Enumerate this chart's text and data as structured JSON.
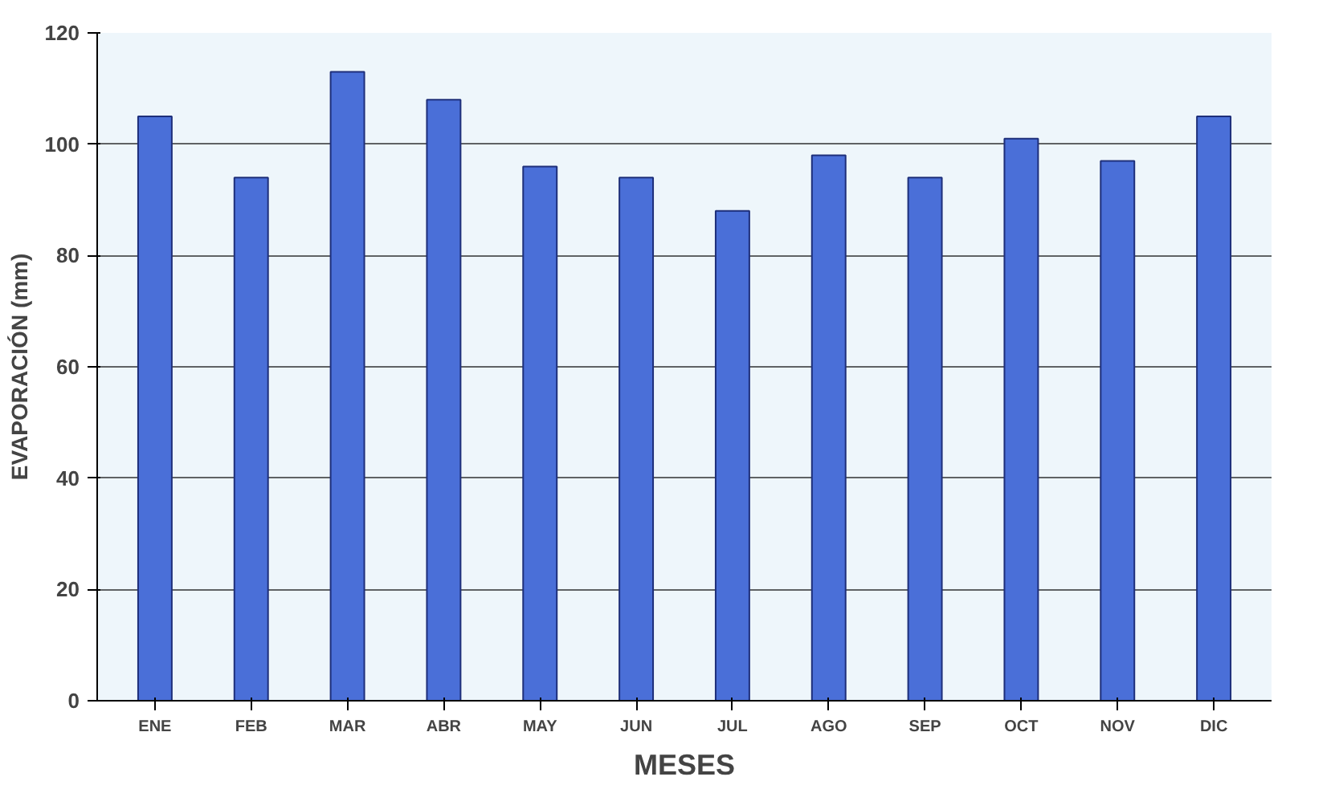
{
  "chart_data": {
    "type": "bar",
    "xlabel": "MESES",
    "ylabel": "EVAPORACIÓN (mm)",
    "categories": [
      "ENE",
      "FEB",
      "MAR",
      "ABR",
      "MAY",
      "JUN",
      "JUL",
      "AGO",
      "SEP",
      "OCT",
      "NOV",
      "DIC"
    ],
    "values": [
      105,
      94,
      113,
      108,
      96,
      94,
      88,
      98,
      94,
      101,
      97,
      105
    ],
    "color": "#4a6fd8",
    "ylim": [
      0,
      120
    ],
    "yticks": [
      0,
      20,
      40,
      60,
      80,
      100,
      120
    ],
    "grid": "y"
  }
}
